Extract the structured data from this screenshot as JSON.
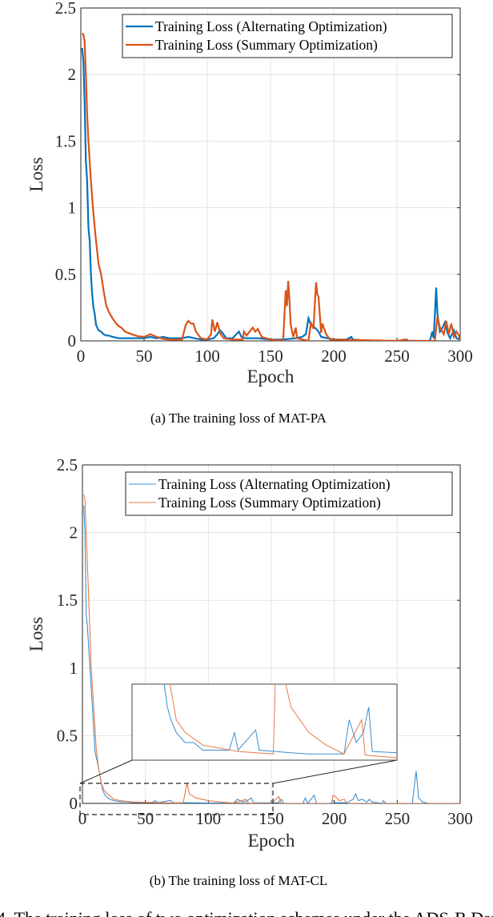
{
  "chart_data": [
    {
      "type": "line",
      "caption": "(a)  The training loss of MAT-PA",
      "xlabel": "Epoch",
      "ylabel": "Loss",
      "xlim": [
        0,
        300
      ],
      "ylim": [
        0,
        2.5
      ],
      "xticks": [
        "0",
        "50",
        "100",
        "150",
        "200",
        "250",
        "300"
      ],
      "yticks": [
        "0",
        "0.5",
        "1",
        "1.5",
        "2",
        "2.5"
      ],
      "grid": true,
      "legend_position": "top-right",
      "series": [
        {
          "name": "Training Loss (Alternating Optimization)",
          "color": "#0072BD",
          "points": [
            [
              1,
              2.2
            ],
            [
              2,
              2.1
            ],
            [
              3,
              1.8
            ],
            [
              4,
              1.35
            ],
            [
              5,
              1.2
            ],
            [
              6,
              0.85
            ],
            [
              7,
              0.75
            ],
            [
              8,
              0.5
            ],
            [
              9,
              0.35
            ],
            [
              10,
              0.25
            ],
            [
              11,
              0.2
            ],
            [
              12,
              0.12
            ],
            [
              14,
              0.08
            ],
            [
              16,
              0.07
            ],
            [
              18,
              0.05
            ],
            [
              20,
              0.04
            ],
            [
              22,
              0.04
            ],
            [
              25,
              0.03
            ],
            [
              30,
              0.02
            ],
            [
              35,
              0.02
            ],
            [
              40,
              0.02
            ],
            [
              50,
              0.02
            ],
            [
              55,
              0.03
            ],
            [
              60,
              0.02
            ],
            [
              65,
              0.03
            ],
            [
              70,
              0.02
            ],
            [
              75,
              0.02
            ],
            [
              80,
              0.02
            ],
            [
              85,
              0.03
            ],
            [
              90,
              0.02
            ],
            [
              95,
              0.01
            ],
            [
              100,
              0.01
            ],
            [
              105,
              0.02
            ],
            [
              108,
              0.05
            ],
            [
              110,
              0.08
            ],
            [
              112,
              0.06
            ],
            [
              115,
              0.02
            ],
            [
              120,
              0.02
            ],
            [
              125,
              0.07
            ],
            [
              127,
              0.03
            ],
            [
              130,
              0.02
            ],
            [
              140,
              0.02
            ],
            [
              150,
              0.01
            ],
            [
              160,
              0.01
            ],
            [
              170,
              0.02
            ],
            [
              175,
              0.03
            ],
            [
              178,
              0.05
            ],
            [
              180,
              0.17
            ],
            [
              182,
              0.12
            ],
            [
              185,
              0.1
            ],
            [
              188,
              0.07
            ],
            [
              190,
              0.03
            ],
            [
              200,
              0.01
            ],
            [
              210,
              0.01
            ],
            [
              214,
              0.03
            ],
            [
              215,
              0.01
            ],
            [
              230,
              0.0
            ],
            [
              250,
              0.0
            ],
            [
              276,
              0.0
            ],
            [
              278,
              0.07
            ],
            [
              279,
              0.02
            ],
            [
              280,
              0.2
            ],
            [
              281,
              0.4
            ],
            [
              282,
              0.2
            ],
            [
              284,
              0.07
            ],
            [
              286,
              0.1
            ],
            [
              288,
              0.14
            ],
            [
              290,
              0.06
            ],
            [
              292,
              0.02
            ],
            [
              295,
              0.08
            ],
            [
              297,
              0.02
            ],
            [
              300,
              0.01
            ]
          ]
        },
        {
          "name": "Training Loss (Summary Optimization)",
          "color": "#D95319",
          "points": [
            [
              1,
              2.31
            ],
            [
              2,
              2.3
            ],
            [
              3,
              2.25
            ],
            [
              4,
              2.0
            ],
            [
              5,
              1.7
            ],
            [
              6,
              1.5
            ],
            [
              8,
              1.2
            ],
            [
              10,
              0.95
            ],
            [
              12,
              0.75
            ],
            [
              14,
              0.58
            ],
            [
              16,
              0.5
            ],
            [
              18,
              0.38
            ],
            [
              20,
              0.27
            ],
            [
              22,
              0.22
            ],
            [
              25,
              0.17
            ],
            [
              28,
              0.13
            ],
            [
              30,
              0.11
            ],
            [
              32,
              0.1
            ],
            [
              35,
              0.07
            ],
            [
              40,
              0.05
            ],
            [
              45,
              0.035
            ],
            [
              50,
              0.03
            ],
            [
              55,
              0.05
            ],
            [
              60,
              0.03
            ],
            [
              65,
              0.015
            ],
            [
              70,
              0.01
            ],
            [
              80,
              0.01
            ],
            [
              83,
              0.12
            ],
            [
              85,
              0.15
            ],
            [
              87,
              0.13
            ],
            [
              89,
              0.13
            ],
            [
              91,
              0.07
            ],
            [
              95,
              0.02
            ],
            [
              100,
              0.01
            ],
            [
              103,
              0.05
            ],
            [
              104,
              0.16
            ],
            [
              106,
              0.07
            ],
            [
              108,
              0.14
            ],
            [
              110,
              0.06
            ],
            [
              113,
              0.02
            ],
            [
              120,
              0.01
            ],
            [
              128,
              0.01
            ],
            [
              129,
              0.07
            ],
            [
              131,
              0.04
            ],
            [
              136,
              0.1
            ],
            [
              138,
              0.07
            ],
            [
              140,
              0.09
            ],
            [
              143,
              0.03
            ],
            [
              150,
              0.01
            ],
            [
              160,
              0.0
            ],
            [
              162,
              0.38
            ],
            [
              163,
              0.26
            ],
            [
              164,
              0.45
            ],
            [
              165,
              0.3
            ],
            [
              166,
              0.12
            ],
            [
              168,
              0.03
            ],
            [
              170,
              0.1
            ],
            [
              171,
              0.02
            ],
            [
              180,
              0.0
            ],
            [
              182,
              0.14
            ],
            [
              184,
              0.09
            ],
            [
              186,
              0.44
            ],
            [
              187,
              0.35
            ],
            [
              188,
              0.33
            ],
            [
              190,
              0.06
            ],
            [
              191,
              0.13
            ],
            [
              194,
              0.05
            ],
            [
              197,
              0.01
            ],
            [
              200,
              0.01
            ],
            [
              250,
              0.0
            ],
            [
              256,
              0.01
            ],
            [
              258,
              0.01
            ],
            [
              259,
              0.0
            ],
            [
              280,
              0.0
            ],
            [
              282,
              0.18
            ],
            [
              284,
              0.1
            ],
            [
              287,
              0.05
            ],
            [
              289,
              0.15
            ],
            [
              291,
              0.05
            ],
            [
              293,
              0.13
            ],
            [
              295,
              0.03
            ],
            [
              297,
              0.07
            ],
            [
              299,
              0.04
            ],
            [
              300,
              0.0
            ]
          ]
        }
      ]
    },
    {
      "type": "line",
      "caption": "(b)  The training loss of MAT-CL",
      "xlabel": "Epoch",
      "ylabel": "Loss",
      "xlim": [
        0,
        300
      ],
      "ylim": [
        0,
        2.5
      ],
      "xticks": [
        "0",
        "50",
        "100",
        "150",
        "200",
        "250",
        "300"
      ],
      "yticks": [
        "0",
        "0.5",
        "1",
        "1.5",
        "2",
        "2.5"
      ],
      "grid": true,
      "legend_position": "top-right",
      "inset": {
        "xlim": [
          0,
          150
        ],
        "ylim": [
          0,
          0.06
        ],
        "position": "center-right"
      },
      "series": [
        {
          "name": "Training Loss (Alternating Optimization)",
          "color": "#3D8FD1",
          "points": [
            [
              1,
              2.2
            ],
            [
              2,
              2.0
            ],
            [
              3,
              1.4
            ],
            [
              4,
              1.3
            ],
            [
              6,
              1.0
            ],
            [
              8,
              0.7
            ],
            [
              10,
              0.38
            ],
            [
              12,
              0.3
            ],
            [
              14,
              0.2
            ],
            [
              16,
              0.1
            ],
            [
              18,
              0.06
            ],
            [
              20,
              0.04
            ],
            [
              22,
              0.03
            ],
            [
              25,
              0.02
            ],
            [
              30,
              0.012
            ],
            [
              35,
              0.012
            ],
            [
              40,
              0.006
            ],
            [
              55,
              0.006
            ],
            [
              58,
              0.02
            ],
            [
              60,
              0.006
            ],
            [
              70,
              0.022
            ],
            [
              72,
              0.006
            ],
            [
              90,
              0.004
            ],
            [
              100,
              0.003
            ],
            [
              120,
              0.003
            ],
            [
              123,
              0.03
            ],
            [
              127,
              0.012
            ],
            [
              131,
              0.02
            ],
            [
              134,
              0.04
            ],
            [
              136,
              0.005
            ],
            [
              150,
              0.004
            ],
            [
              155,
              0.005
            ],
            [
              158,
              0.03
            ],
            [
              160,
              0.0
            ],
            [
              175,
              0.0
            ],
            [
              177,
              0.04
            ],
            [
              179,
              0.0
            ],
            [
              184,
              0.06
            ],
            [
              186,
              0.0
            ],
            [
              197,
              0.0
            ],
            [
              199,
              0.02
            ],
            [
              201,
              0.005
            ],
            [
              210,
              0.005
            ],
            [
              215,
              0.03
            ],
            [
              217,
              0.07
            ],
            [
              219,
              0.02
            ],
            [
              222,
              0.03
            ],
            [
              226,
              0.01
            ],
            [
              228,
              0.03
            ],
            [
              230,
              0.01
            ],
            [
              238,
              0.0
            ],
            [
              239,
              0.02
            ],
            [
              241,
              0.0
            ],
            [
              262,
              0.0
            ],
            [
              265,
              0.24
            ],
            [
              267,
              0.04
            ],
            [
              270,
              0.01
            ],
            [
              275,
              0.0
            ],
            [
              300,
              0.0
            ]
          ]
        },
        {
          "name": "Training Loss (Summary Optimization)",
          "color": "#E8794A",
          "points": [
            [
              1,
              2.28
            ],
            [
              2,
              2.25
            ],
            [
              3,
              2.0
            ],
            [
              5,
              1.5
            ],
            [
              7,
              1.0
            ],
            [
              9,
              0.7
            ],
            [
              11,
              0.4
            ],
            [
              13,
              0.25
            ],
            [
              15,
              0.15
            ],
            [
              17,
              0.1
            ],
            [
              20,
              0.07
            ],
            [
              25,
              0.03
            ],
            [
              30,
              0.02
            ],
            [
              40,
              0.01
            ],
            [
              60,
              0.005
            ],
            [
              80,
              0.003
            ],
            [
              83,
              0.15
            ],
            [
              85,
              0.07
            ],
            [
              90,
              0.04
            ],
            [
              100,
              0.02
            ],
            [
              110,
              0.01
            ],
            [
              120,
              0.003
            ],
            [
              130,
              0.03
            ],
            [
              132,
              0.002
            ],
            [
              150,
              0.0
            ],
            [
              156,
              0.05
            ],
            [
              158,
              0.0
            ],
            [
              198,
              0.0
            ],
            [
              199,
              0.06
            ],
            [
              201,
              0.05
            ],
            [
              204,
              0.02
            ],
            [
              208,
              0.03
            ],
            [
              210,
              0.0
            ],
            [
              300,
              0.0
            ]
          ]
        }
      ]
    }
  ],
  "figure_caption_partial": "4.  The training loss of two optimization schemes under the ADS-B Dat"
}
